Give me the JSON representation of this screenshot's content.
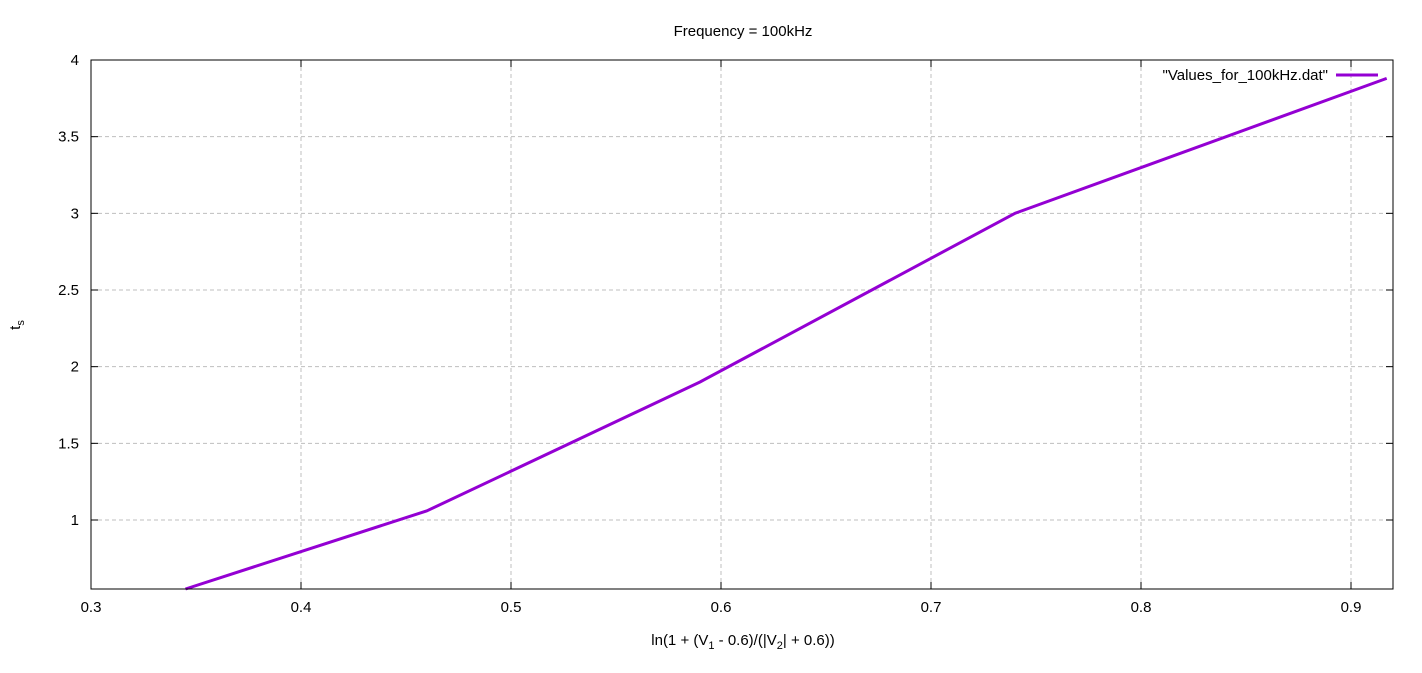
{
  "chart_data": {
    "type": "line",
    "title": "Frequency = 100kHz",
    "xlabel": {
      "prefix": "ln(1 + (V",
      "sub1": "1",
      "middle": " - 0.6)/(|V",
      "sub2": "2",
      "suffix": "| + 0.6))"
    },
    "ylabel": {
      "main": "t",
      "sub": "s"
    },
    "xlim": [
      0.3,
      0.92
    ],
    "ylim": [
      0.55,
      4
    ],
    "xticks": [
      0.3,
      0.4,
      0.5,
      0.6,
      0.7,
      0.8,
      0.9
    ],
    "xtick_labels": [
      "0.3",
      "0.4",
      "0.5",
      "0.6",
      "0.7",
      "0.8",
      "0.9"
    ],
    "yticks": [
      1,
      1.5,
      2,
      2.5,
      3,
      3.5,
      4
    ],
    "ytick_labels": [
      "1",
      "1.5",
      "2",
      "2.5",
      "3",
      "3.5",
      "4"
    ],
    "grid": true,
    "legend_position": "top-right",
    "series": [
      {
        "name": "\"Values_for_100kHz.dat\"",
        "color": "#9400d3",
        "x": [
          0.345,
          0.46,
          0.59,
          0.74,
          0.917
        ],
        "y": [
          0.55,
          1.06,
          1.9,
          3.0,
          3.88
        ]
      }
    ]
  }
}
